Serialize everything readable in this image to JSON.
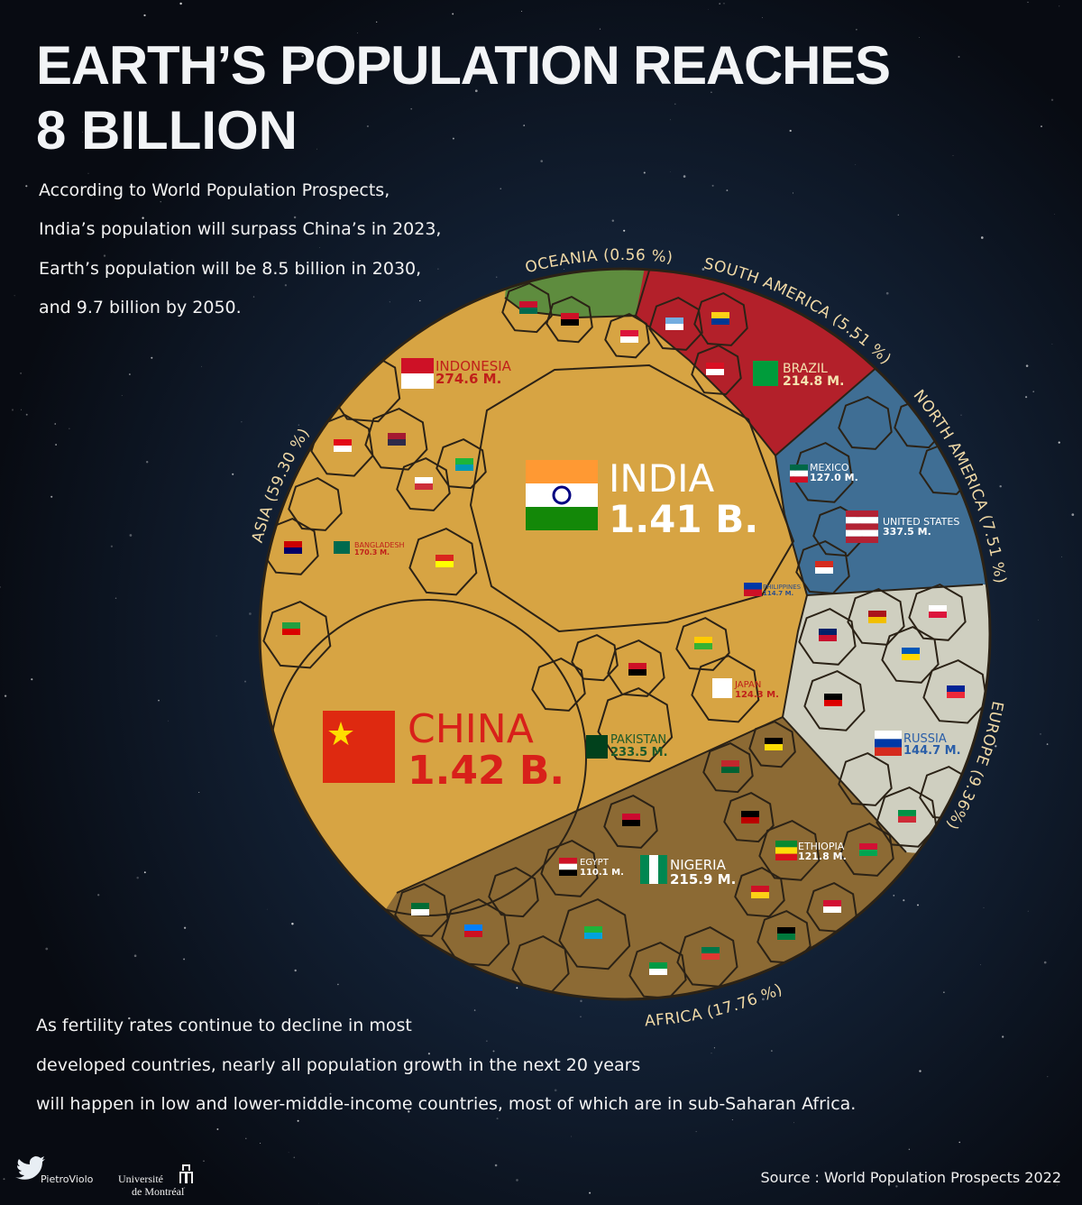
{
  "header": {
    "title_lines": [
      "EARTH’S POPULATION REACHES",
      "8 BILLION"
    ],
    "intro_lines": [
      "According to World Population Prospects,",
      "India’s population will surpass China’s in 2023,",
      "Earth’s population will be 8.5 billion in 2030,",
      "and 9.7 billion by 2050."
    ]
  },
  "regions": [
    {
      "label": "ASIA (59.30 %)"
    },
    {
      "label": "OCEANIA (0.56 %)"
    },
    {
      "label": "SOUTH AMERICA (5.51 %)"
    },
    {
      "label": "NORTH AMERICA (7.51 %)"
    },
    {
      "label": "EUROPE (9.36%)"
    },
    {
      "label": "AFRICA (17.76 %)"
    }
  ],
  "countries": [
    {
      "name": "INDIA",
      "population": "1.41 B."
    },
    {
      "name": "CHINA",
      "population": "1.42 B."
    },
    {
      "name": "INDONESIA",
      "population": "274.6 M."
    },
    {
      "name": "BANGLADESH",
      "population": "170.3 M."
    },
    {
      "name": "PHILIPPINES",
      "population": "114.7 M."
    },
    {
      "name": "JAPAN",
      "population": "124.3 M."
    },
    {
      "name": "PAKISTAN",
      "population": "233.5 M."
    },
    {
      "name": "BRAZIL",
      "population": "214.8 M."
    },
    {
      "name": "MEXICO",
      "population": "127.0 M."
    },
    {
      "name": "UNITED STATES",
      "population": "337.5 M."
    },
    {
      "name": "RUSSIA",
      "population": "144.7 M."
    },
    {
      "name": "ETHIOPIA",
      "population": "121.8 M."
    },
    {
      "name": "NIGERIA",
      "population": "215.9 M."
    },
    {
      "name": "EGYPT",
      "population": "110.1 M."
    }
  ],
  "footer": {
    "text_lines": [
      "As fertility rates continue to decline in most",
      "developed countries, nearly all population growth in the next 20 years",
      "will happen in low and lower-middle-income countries, most of which are in sub-Saharan Africa."
    ],
    "credit": "PietroViolo",
    "university_lines": [
      "Université",
      "de Montréal"
    ],
    "source": "Source : World Population Prospects  2022"
  }
}
